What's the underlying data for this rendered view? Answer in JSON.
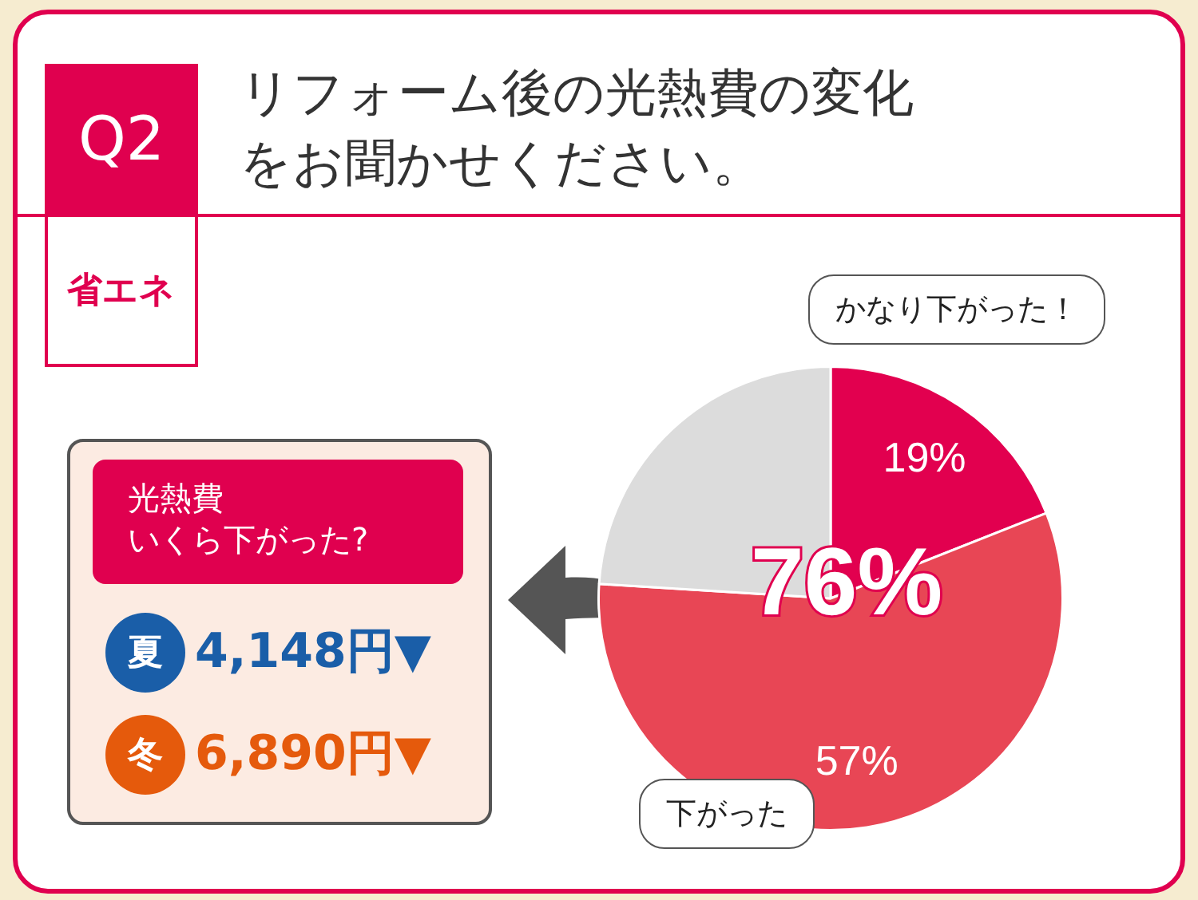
{
  "chart_data": {
    "type": "pie",
    "title": "リフォーム後の光熱費の変化をお聞かせください。",
    "categories": [
      "かなり下がった！",
      "下がった",
      null
    ],
    "values": [
      19,
      57,
      24
    ],
    "colors": [
      "#e2004f",
      "#e84655",
      "#dcdcdc"
    ],
    "value_labels": [
      "19%",
      "57%",
      null
    ],
    "legend": false,
    "annotations": [
      "Q2",
      "省エネ",
      "76%",
      "光熱費",
      "いくら下がった?",
      "夏",
      "4,148円▼",
      "冬",
      "6,890円▼"
    ]
  }
}
